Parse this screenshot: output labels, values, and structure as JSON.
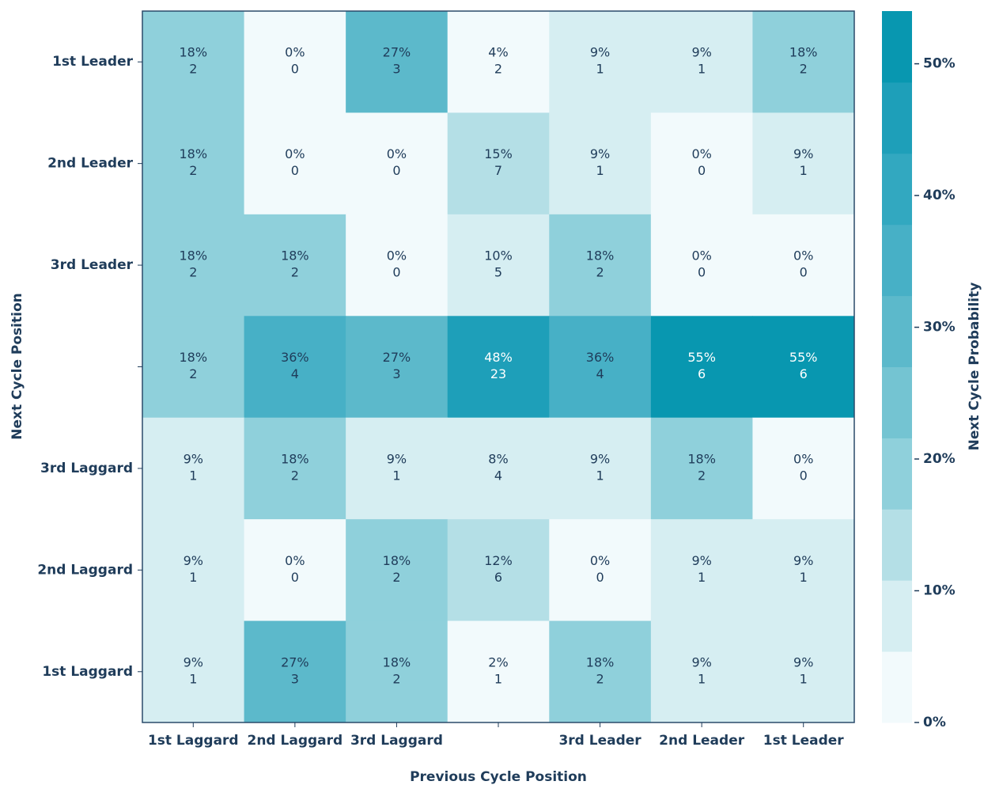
{
  "chart_data": {
    "type": "heatmap",
    "xlabel": "Previous Cycle Position",
    "ylabel": "Next Cycle Position",
    "colorbar_label": "Next Cycle Probability",
    "x_categories": [
      "1st Laggard",
      "2nd Laggard",
      "3rd Laggard",
      null,
      "3rd Leader",
      "2nd Leader",
      "1st Leader"
    ],
    "y_categories": [
      "1st Leader",
      "2nd Leader",
      "3rd Leader",
      null,
      "3rd Laggard",
      "2nd Laggard",
      "1st Laggard"
    ],
    "values": [
      [
        18,
        0,
        27,
        4,
        9,
        9,
        18
      ],
      [
        18,
        0,
        0,
        15,
        9,
        0,
        9
      ],
      [
        18,
        18,
        0,
        10,
        18,
        0,
        0
      ],
      [
        18,
        36,
        27,
        48,
        36,
        55,
        55
      ],
      [
        9,
        18,
        9,
        8,
        9,
        18,
        0
      ],
      [
        9,
        0,
        18,
        12,
        0,
        9,
        9
      ],
      [
        9,
        27,
        18,
        2,
        18,
        9,
        9
      ]
    ],
    "value_labels": [
      [
        "18%",
        "0%",
        "27%",
        "4%",
        "9%",
        "9%",
        "18%"
      ],
      [
        "18%",
        "0%",
        "0%",
        "15%",
        "9%",
        "0%",
        "9%"
      ],
      [
        "18%",
        "18%",
        "0%",
        "10%",
        "18%",
        "0%",
        "0%"
      ],
      [
        "18%",
        "36%",
        "27%",
        "48%",
        "36%",
        "55%",
        "55%"
      ],
      [
        "9%",
        "18%",
        "9%",
        "8%",
        "9%",
        "18%",
        "0%"
      ],
      [
        "9%",
        "0%",
        "18%",
        "12%",
        "0%",
        "9%",
        "9%"
      ],
      [
        "9%",
        "27%",
        "18%",
        "2%",
        "18%",
        "9%",
        "9%"
      ]
    ],
    "counts": [
      [
        2,
        0,
        3,
        2,
        1,
        1,
        2
      ],
      [
        2,
        0,
        0,
        7,
        1,
        0,
        1
      ],
      [
        2,
        2,
        0,
        5,
        2,
        0,
        0
      ],
      [
        2,
        4,
        3,
        23,
        4,
        6,
        6
      ],
      [
        1,
        2,
        1,
        4,
        1,
        2,
        0
      ],
      [
        1,
        0,
        2,
        6,
        0,
        1,
        1
      ],
      [
        1,
        3,
        2,
        1,
        2,
        1,
        1
      ]
    ],
    "zlim": [
      0,
      54
    ],
    "zticks": [
      {
        "value": 0,
        "label": "0%"
      },
      {
        "value": 10,
        "label": "10%"
      },
      {
        "value": 20,
        "label": "20%"
      },
      {
        "value": 30,
        "label": "30%"
      },
      {
        "value": 40,
        "label": "40%"
      },
      {
        "value": 50,
        "label": "50%"
      }
    ],
    "colors": [
      "#f2fafc",
      "#d6eef2",
      "#b4dfe6",
      "#8fd0db",
      "#74c4d2",
      "#5cb9cb",
      "#47b0c6",
      "#32a8c0",
      "#1e9fb9",
      "#0897b0"
    ]
  }
}
